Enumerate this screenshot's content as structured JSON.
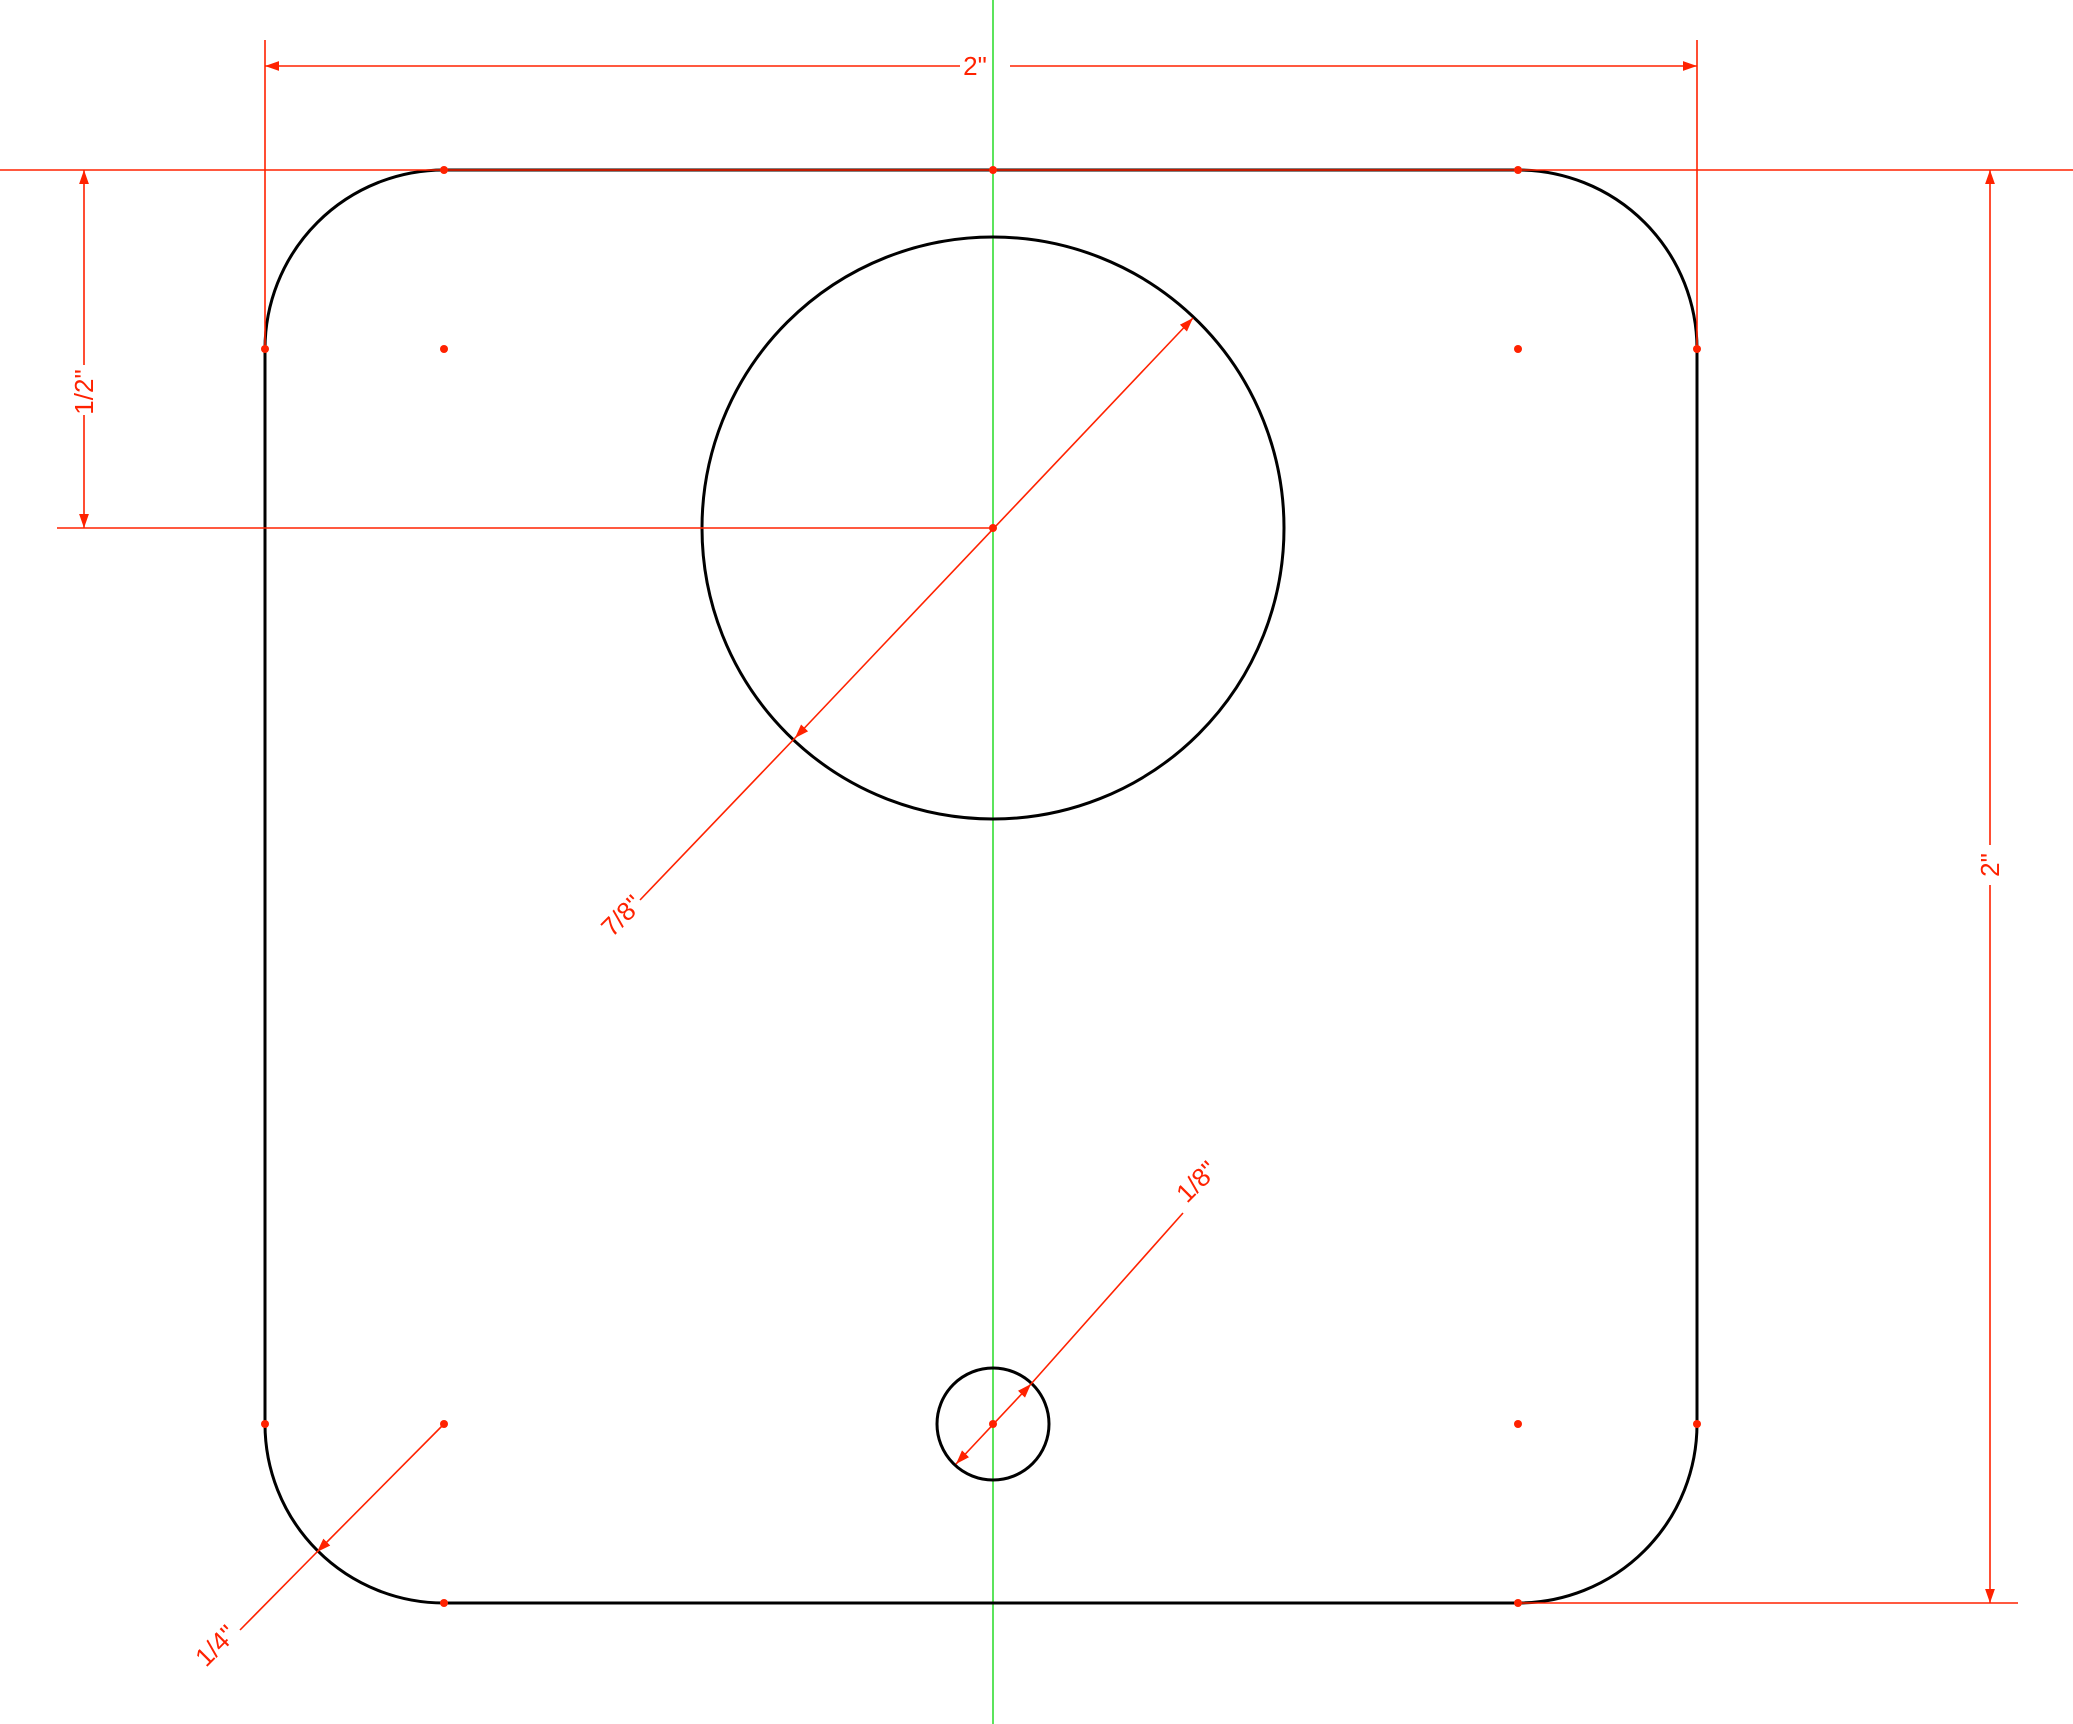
{
  "dimensions": {
    "overall_width": "2\"",
    "overall_height": "2\"",
    "top_hole_offset": "1/2\"",
    "large_hole_diameter": "7/8\"",
    "small_hole_diameter": "1/8\"",
    "corner_radius": "1/4\""
  },
  "colors": {
    "outline": "#000000",
    "dimension": "#ff2200",
    "centerline": "#33dd33",
    "background": "#ffffff"
  }
}
